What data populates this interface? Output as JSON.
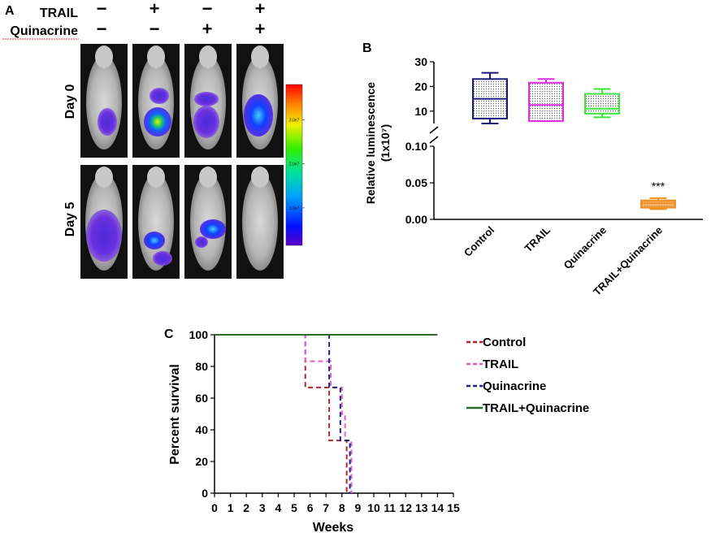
{
  "panelA": {
    "label": "A",
    "row_labels": [
      "TRAIL",
      "Quinacrine"
    ],
    "treatment_signs": [
      [
        "−",
        "−"
      ],
      [
        "+",
        "−"
      ],
      [
        "−",
        "+"
      ],
      [
        "+",
        "+"
      ]
    ],
    "day_labels": [
      "Day 0",
      "Day 5"
    ],
    "colorbar_ticks": [
      "3.0e7",
      "2.0e7",
      "1.0e7"
    ],
    "colorbar_tick_values": [
      30000000.0,
      20000000.0,
      10000000.0
    ],
    "colorbar_range": [
      1500000.0,
      38000000.0
    ]
  },
  "panelB": {
    "label": "B",
    "chart_data": {
      "type": "box",
      "ylabel": "Relative luminescence",
      "ylabel_units": "(1x10⁷)",
      "categories": [
        "Control",
        "TRAIL",
        "Quinacrine",
        "TRAIL+Quinacrine"
      ],
      "colors": [
        "#1a1a7a",
        "#e12fe6",
        "#3ee63e",
        "#f0922a"
      ],
      "upper_axis": {
        "range": [
          5,
          30
        ],
        "ticks": [
          10,
          20,
          30
        ],
        "tick_labels": [
          "10",
          "20",
          "30"
        ]
      },
      "lower_axis": {
        "range": [
          0,
          0.1
        ],
        "ticks": [
          0.0,
          0.05,
          0.1
        ],
        "tick_labels": [
          "0.00",
          "0.05",
          "0.10"
        ]
      },
      "boxes": [
        {
          "name": "Control",
          "min": 5,
          "q1": 7,
          "median": 15,
          "q3": 23,
          "max": 25.5
        },
        {
          "name": "TRAIL",
          "min": 6,
          "q1": 6,
          "median": 12.5,
          "q3": 21.5,
          "max": 23
        },
        {
          "name": "Quinacrine",
          "min": 7.5,
          "q1": 9,
          "median": 11,
          "q3": 17,
          "max": 19
        },
        {
          "name": "TRAIL+Quinacrine",
          "min": 0.014,
          "q1": 0.016,
          "median": 0.022,
          "q3": 0.026,
          "max": 0.029
        }
      ],
      "annotation": "***"
    }
  },
  "panelC": {
    "label": "C",
    "chart_data": {
      "type": "line",
      "xlabel": "Weeks",
      "ylabel": "Percent survival",
      "xlim": [
        0,
        15
      ],
      "ylim": [
        0,
        100
      ],
      "x_ticks": [
        0,
        1,
        2,
        3,
        4,
        5,
        6,
        7,
        8,
        9,
        10,
        11,
        12,
        13,
        14,
        15
      ],
      "y_ticks": [
        0,
        20,
        40,
        60,
        80,
        100
      ],
      "x_tick_labels": [
        "0",
        "1",
        "2",
        "3",
        "4",
        "5",
        "6",
        "7",
        "8",
        "9",
        "10",
        "11",
        "12",
        "13",
        "14",
        "15"
      ],
      "y_tick_labels": [
        "0",
        "20",
        "40",
        "60",
        "80",
        "100"
      ],
      "series": [
        {
          "name": "Control",
          "color": "#b0262e",
          "dash": "6,4",
          "steps": [
            [
              0,
              100
            ],
            [
              5.7,
              66.7
            ],
            [
              7.2,
              33.3
            ],
            [
              8.3,
              0
            ]
          ]
        },
        {
          "name": "TRAIL",
          "color": "#e05fc8",
          "dash": "6,4",
          "steps": [
            [
              0,
              100
            ],
            [
              5.7,
              83.3
            ],
            [
              7.3,
              66.7
            ],
            [
              8.0,
              50
            ],
            [
              8.2,
              33.3
            ],
            [
              8.6,
              0
            ]
          ]
        },
        {
          "name": "Quinacrine",
          "color": "#23237e",
          "dash": "6,4",
          "steps": [
            [
              0,
              100
            ],
            [
              7.2,
              66.7
            ],
            [
              7.9,
              33.3
            ],
            [
              8.5,
              0
            ]
          ]
        },
        {
          "name": "TRAIL+Quinacrine",
          "color": "#2f6b2c",
          "dash": "",
          "steps": [
            [
              0,
              100
            ],
            [
              14,
              100
            ]
          ]
        }
      ],
      "legend": [
        "Control",
        "TRAIL",
        "Quinacrine",
        "TRAIL+Quinacrine"
      ]
    }
  }
}
